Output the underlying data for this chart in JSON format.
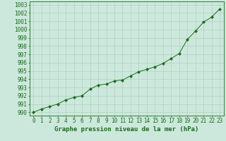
{
  "x": [
    0,
    1,
    2,
    3,
    4,
    5,
    6,
    7,
    8,
    9,
    10,
    11,
    12,
    13,
    14,
    15,
    16,
    17,
    18,
    19,
    20,
    21,
    22,
    23
  ],
  "y": [
    990.0,
    990.4,
    990.7,
    991.0,
    991.5,
    991.8,
    992.0,
    992.8,
    993.3,
    993.4,
    993.8,
    993.9,
    994.4,
    994.9,
    995.2,
    995.5,
    995.9,
    996.5,
    997.1,
    998.8,
    999.8,
    1000.9,
    1001.5,
    1002.5
  ],
  "line_color": "#1a6b1a",
  "marker": "D",
  "marker_size": 2.2,
  "bg_color": "#cce8dc",
  "grid_color": "#aaccbb",
  "ylabel_ticks": [
    990,
    991,
    992,
    993,
    994,
    995,
    996,
    997,
    998,
    999,
    1000,
    1001,
    1002,
    1003
  ],
  "ylim": [
    989.6,
    1003.4
  ],
  "xlim": [
    -0.5,
    23.5
  ],
  "xlabel": "Graphe pression niveau de la mer (hPa)",
  "tick_fontsize": 5.5,
  "label_fontsize": 6.5
}
